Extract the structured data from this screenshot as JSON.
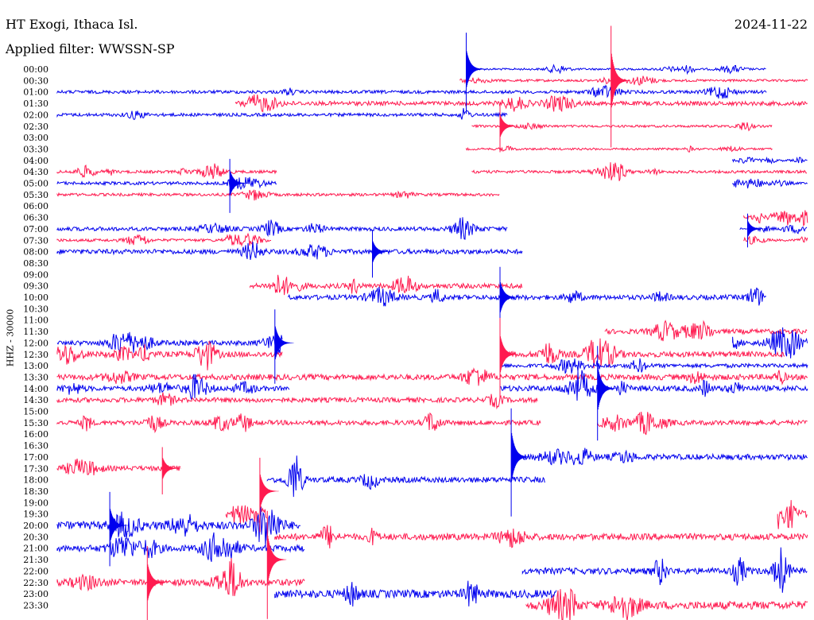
{
  "header": {
    "station": "HT Exogi, Ithaca Isl.",
    "date": "2024-11-22",
    "filter": "Applied filter: WWSSN-SP"
  },
  "chart_data": {
    "type": "line",
    "title": "HT Exogi, Ithaca Isl.",
    "subtitle": "Applied filter: WWSSN-SP",
    "ylabel": "HHZ - 30000",
    "colors": {
      "even_hour": "#0000ee",
      "half_hour": "#ff1a4f"
    },
    "row_labels": [
      "00:00",
      "00:30",
      "01:00",
      "01:30",
      "02:00",
      "02:30",
      "03:00",
      "03:30",
      "04:00",
      "04:30",
      "05:00",
      "05:30",
      "06:00",
      "06:30",
      "07:00",
      "07:30",
      "08:00",
      "08:30",
      "09:00",
      "09:30",
      "10:00",
      "10:30",
      "11:00",
      "11:30",
      "12:00",
      "12:30",
      "13:00",
      "13:30",
      "14:00",
      "14:30",
      "15:00",
      "15:30",
      "16:00",
      "16:30",
      "17:00",
      "17:30",
      "18:00",
      "18:30",
      "19:00",
      "19:30",
      "20:00",
      "20:30",
      "21:00",
      "21:30",
      "22:00",
      "22:30",
      "23:00",
      "23:30"
    ],
    "traces": [
      {
        "row": 0,
        "from": 0.545,
        "to": 0.945,
        "amp": 1.2
      },
      {
        "row": 1,
        "from": 0.537,
        "to": 1.0,
        "amp": 1.5
      },
      {
        "row": 2,
        "from": 0.0,
        "to": 0.945,
        "amp": 2.0
      },
      {
        "row": 3,
        "from": 0.238,
        "to": 1.0,
        "amp": 2.6
      },
      {
        "row": 4,
        "from": 0.0,
        "to": 0.6,
        "amp": 2.0
      },
      {
        "row": 5,
        "from": 0.553,
        "to": 0.953,
        "amp": 1.5
      },
      {
        "row": 7,
        "from": 0.545,
        "to": 0.953,
        "amp": 1.3
      },
      {
        "row": 8,
        "from": 0.9,
        "to": 1.0,
        "amp": 1.2
      },
      {
        "row": 9,
        "from": 0.0,
        "to": 0.293,
        "amp": 1.8
      },
      {
        "row": 9,
        "from": 0.553,
        "to": 1.0,
        "amp": 1.8
      },
      {
        "row": 10,
        "from": 0.0,
        "to": 0.293,
        "amp": 2.0
      },
      {
        "row": 10,
        "from": 0.9,
        "to": 1.0,
        "amp": 1.2
      },
      {
        "row": 11,
        "from": 0.0,
        "to": 0.59,
        "amp": 1.8
      },
      {
        "row": 13,
        "from": 0.915,
        "to": 1.0,
        "amp": 2.2
      },
      {
        "row": 14,
        "from": 0.0,
        "to": 0.6,
        "amp": 2.5
      },
      {
        "row": 14,
        "from": 0.91,
        "to": 1.0,
        "amp": 1.3
      },
      {
        "row": 15,
        "from": 0.0,
        "to": 0.285,
        "amp": 1.8
      },
      {
        "row": 15,
        "from": 0.915,
        "to": 1.0,
        "amp": 1.3
      },
      {
        "row": 16,
        "from": 0.0,
        "to": 0.62,
        "amp": 3.0
      },
      {
        "row": 19,
        "from": 0.257,
        "to": 0.62,
        "amp": 3.0
      },
      {
        "row": 20,
        "from": 0.308,
        "to": 0.945,
        "amp": 3.0
      },
      {
        "row": 23,
        "from": 0.73,
        "to": 1.0,
        "amp": 3.0
      },
      {
        "row": 24,
        "from": 0.0,
        "to": 0.3,
        "amp": 3.0
      },
      {
        "row": 24,
        "from": 0.9,
        "to": 1.0,
        "amp": 3.0
      },
      {
        "row": 25,
        "from": 0.0,
        "to": 0.3,
        "amp": 3.5
      },
      {
        "row": 25,
        "from": 0.59,
        "to": 0.97,
        "amp": 3.5
      },
      {
        "row": 26,
        "from": 0.59,
        "to": 1.0,
        "amp": 2.5
      },
      {
        "row": 27,
        "from": 0.0,
        "to": 1.0,
        "amp": 3.5
      },
      {
        "row": 28,
        "from": 0.0,
        "to": 0.31,
        "amp": 3.0
      },
      {
        "row": 28,
        "from": 0.59,
        "to": 1.0,
        "amp": 3.5
      },
      {
        "row": 29,
        "from": 0.0,
        "to": 0.64,
        "amp": 3.0
      },
      {
        "row": 31,
        "from": 0.0,
        "to": 0.645,
        "amp": 3.0
      },
      {
        "row": 31,
        "from": 0.72,
        "to": 1.0,
        "amp": 3.0
      },
      {
        "row": 34,
        "from": 0.61,
        "to": 1.0,
        "amp": 3.5
      },
      {
        "row": 35,
        "from": 0.0,
        "to": 0.165,
        "amp": 3.0
      },
      {
        "row": 36,
        "from": 0.28,
        "to": 0.65,
        "amp": 3.5
      },
      {
        "row": 39,
        "from": 0.225,
        "to": 0.28,
        "amp": 3.5
      },
      {
        "row": 39,
        "from": 0.96,
        "to": 1.0,
        "amp": 5.0
      },
      {
        "row": 40,
        "from": 0.0,
        "to": 0.325,
        "amp": 5.0
      },
      {
        "row": 41,
        "from": 0.29,
        "to": 1.0,
        "amp": 4.0
      },
      {
        "row": 42,
        "from": 0.0,
        "to": 0.33,
        "amp": 4.0
      },
      {
        "row": 44,
        "from": 0.62,
        "to": 1.0,
        "amp": 4.0
      },
      {
        "row": 45,
        "from": 0.0,
        "to": 0.33,
        "amp": 4.0
      },
      {
        "row": 46,
        "from": 0.29,
        "to": 0.665,
        "amp": 5.0
      },
      {
        "row": 47,
        "from": 0.625,
        "to": 1.0,
        "amp": 5.0
      }
    ],
    "events": [
      {
        "row": 1,
        "x": 0.738,
        "amp": 0.9
      },
      {
        "row": 0,
        "x": 0.545,
        "amp": 0.6
      },
      {
        "row": 5,
        "x": 0.59,
        "amp": 0.35
      },
      {
        "row": 10,
        "x": 0.23,
        "amp": 0.4
      },
      {
        "row": 14,
        "x": 0.92,
        "amp": 0.25
      },
      {
        "row": 16,
        "x": 0.42,
        "amp": 0.35
      },
      {
        "row": 20,
        "x": 0.59,
        "amp": 0.5
      },
      {
        "row": 24,
        "x": 0.29,
        "amp": 0.55
      },
      {
        "row": 25,
        "x": 0.59,
        "amp": 0.6
      },
      {
        "row": 28,
        "x": 0.72,
        "amp": 0.7
      },
      {
        "row": 34,
        "x": 0.605,
        "amp": 0.8
      },
      {
        "row": 35,
        "x": 0.14,
        "amp": 0.35
      },
      {
        "row": 37,
        "x": 0.27,
        "amp": 0.55
      },
      {
        "row": 40,
        "x": 0.07,
        "amp": 0.55
      },
      {
        "row": 43,
        "x": 0.28,
        "amp": 0.8
      },
      {
        "row": 45,
        "x": 0.12,
        "amp": 0.6
      }
    ]
  }
}
